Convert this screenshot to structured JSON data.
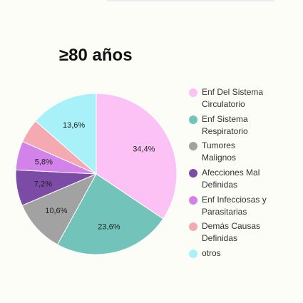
{
  "chart_data": {
    "type": "pie",
    "title": "≥80 años",
    "categories": [
      "Enf Del Sistema\nCirculatorio",
      "Enf Sistema\nRespiratorio",
      "Tumores\nMalignos",
      "Afecciones Mal\nDefinidas",
      "Enf Infecciosas y\nParasitarias",
      "Demás Causas\nDefinidas",
      "otros"
    ],
    "values": [
      34.4,
      23.6,
      10.6,
      7.2,
      5.8,
      4.8,
      13.6
    ],
    "data_labels": [
      "34,4%",
      "23,6%",
      "10,6%",
      "7,2%",
      "5,8%",
      "",
      "13,6%"
    ],
    "colors": [
      "#fcc2f6",
      "#72c3b9",
      "#a2a2a2",
      "#7b4ba6",
      "#d282e8",
      "#f5aab2",
      "#a9f1f9"
    ],
    "legend_position": "right"
  }
}
